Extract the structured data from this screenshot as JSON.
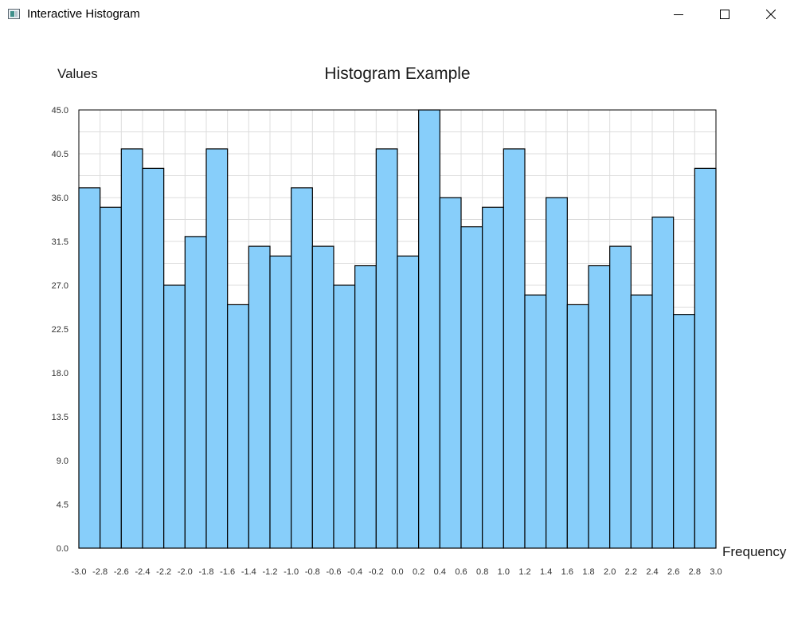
{
  "window": {
    "title": "Interactive Histogram",
    "icon": "app-window-icon",
    "controls": {
      "minimize_icon": "minimize-icon",
      "maximize_icon": "maximize-icon",
      "close_icon": "close-icon"
    }
  },
  "chart_data": {
    "type": "bar",
    "title": "Histogram Example",
    "ylabel": "Values",
    "xlabel": "Frequency",
    "xlim": [
      -3.0,
      3.0
    ],
    "ylim": [
      0,
      45
    ],
    "grid": true,
    "bar_color": "#87cefa",
    "edge_color": "#000000",
    "y_ticks": [
      "0.0",
      "4.5",
      "9.0",
      "13.5",
      "18.0",
      "22.5",
      "27.0",
      "31.5",
      "36.0",
      "40.5",
      "45.0"
    ],
    "x_ticks": [
      "-3.0",
      "-2.8",
      "-2.6",
      "-2.4",
      "-2.2",
      "-2.0",
      "-1.8",
      "-1.6",
      "-1.4",
      "-1.2",
      "-1.0",
      "-0.8",
      "-0.6",
      "-0.4",
      "-0.2",
      "0.0",
      "0.2",
      "0.4",
      "0.6",
      "0.8",
      "1.0",
      "1.2",
      "1.4",
      "1.6",
      "1.8",
      "2.0",
      "2.2",
      "2.4",
      "2.6",
      "2.8",
      "3.0"
    ],
    "values": [
      37,
      35,
      41,
      39,
      27,
      32,
      41,
      25,
      31,
      30,
      37,
      31,
      27,
      29,
      41,
      30,
      45,
      36,
      33,
      35,
      41,
      26,
      36,
      25,
      29,
      31,
      26,
      34,
      24,
      39
    ]
  }
}
